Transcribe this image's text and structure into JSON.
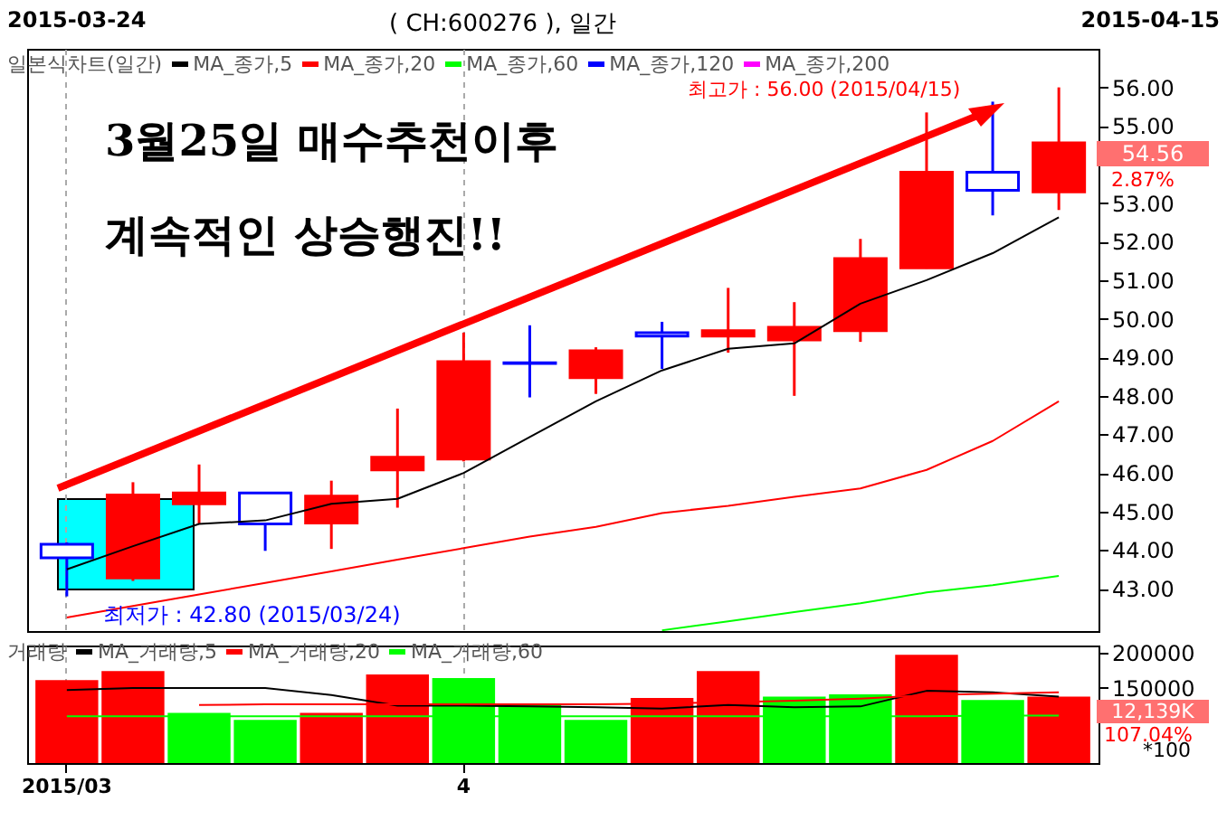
{
  "chart_data": [
    {
      "type": "candlestick",
      "title": "( CH:600276 ), 일간",
      "legend_title": "일본식차트(일간)",
      "legend": "top left",
      "tick_labels": "y",
      "grid": "x",
      "categories": [
        "2015/03",
        null,
        null,
        null,
        null,
        null,
        "4",
        null,
        null,
        null,
        null,
        null,
        null,
        null,
        null,
        null
      ],
      "ohlc": [
        [
          44.15,
          44.2,
          42.8,
          43.8
        ],
        [
          43.28,
          45.76,
          43.2,
          45.43
        ],
        [
          45.2,
          46.22,
          44.68,
          45.48
        ],
        [
          45.48,
          45.48,
          43.98,
          44.68
        ],
        [
          44.7,
          45.8,
          44.03,
          45.4
        ],
        [
          46.08,
          47.67,
          45.1,
          46.41
        ],
        [
          46.36,
          49.64,
          46.3,
          48.89
        ],
        [
          48.86,
          49.83,
          47.96,
          48.84
        ],
        [
          48.47,
          49.26,
          48.05,
          49.17
        ],
        [
          49.64,
          49.92,
          48.7,
          49.55
        ],
        [
          49.55,
          50.8,
          49.12,
          49.69
        ],
        [
          49.45,
          50.43,
          48.0,
          49.78
        ],
        [
          49.69,
          52.07,
          49.4,
          51.56
        ],
        [
          51.32,
          55.35,
          51.3,
          53.8
        ],
        [
          53.8,
          55.63,
          52.68,
          53.33
        ],
        [
          53.29,
          56.0,
          52.82,
          54.56
        ]
      ],
      "colors": [
        "#0000ff",
        "#ff0000",
        "#ff0000",
        "#0000ff",
        "#ff0000",
        "#ff0000",
        "#ff0000",
        "#0000ff",
        "#ff0000",
        "#0000ff",
        "#ff0000",
        "#ff0000",
        "#ff0000",
        "#ff0000",
        "#0000ff",
        "#ff0000"
      ],
      "series": [
        {
          "name": "MA_종가,5",
          "type": "line",
          "color": "#000000",
          "values": [
            43.5,
            44.1,
            44.68,
            44.77,
            45.2,
            45.33,
            46.0,
            46.93,
            47.86,
            48.66,
            49.22,
            49.36,
            50.39,
            51.0,
            51.7,
            52.63
          ]
        },
        {
          "name": "MA_종가,20",
          "type": "line",
          "color": "#ff0000",
          "values": [
            42.25,
            42.55,
            42.85,
            43.15,
            43.45,
            43.75,
            44.05,
            44.35,
            44.6,
            44.96,
            45.15,
            45.38,
            45.6,
            46.08,
            46.83,
            47.86
          ]
        },
        {
          "name": "MA_종가,60",
          "type": "line",
          "color": "#00ff00",
          "values": [
            null,
            null,
            null,
            null,
            null,
            null,
            null,
            null,
            null,
            41.92,
            42.15,
            42.39,
            42.62,
            42.9,
            43.09,
            43.33
          ]
        },
        {
          "name": "MA_종가,120",
          "type": "line",
          "color": "#0000ff",
          "values": [
            null,
            null,
            null,
            null,
            null,
            null,
            null,
            null,
            null,
            null,
            null,
            null,
            null,
            null,
            null,
            null
          ]
        },
        {
          "name": "MA_종가,200",
          "type": "line",
          "color": "#ff00ff",
          "values": [
            null,
            null,
            null,
            null,
            null,
            null,
            null,
            null,
            null,
            null,
            null,
            null,
            null,
            null,
            null,
            null
          ]
        }
      ],
      "ylim": [
        41.9,
        57.0
      ],
      "yticks": [
        {
          "value": 43,
          "label": "43.00"
        },
        {
          "value": 44,
          "label": "44.00"
        },
        {
          "value": 45,
          "label": "45.00"
        },
        {
          "value": 46,
          "label": "46.00"
        },
        {
          "value": 47,
          "label": "47.00"
        },
        {
          "value": 48,
          "label": "48.00"
        },
        {
          "value": 49,
          "label": "49.00"
        },
        {
          "value": 50,
          "label": "50.00"
        },
        {
          "value": 51,
          "label": "51.00"
        },
        {
          "value": 52,
          "label": "52.00"
        },
        {
          "value": 53,
          "label": "53.00"
        },
        {
          "value": 55,
          "label": "55.00"
        },
        {
          "value": 56,
          "label": "56.00"
        }
      ],
      "annotations": [
        "2015-03-24",
        "2015-04-15",
        "3월25일  매수추천이후",
        "계속적인  상승행진!!",
        "54.56",
        "2.87%",
        {
          "text": "최저가 : 42.80 (2015/03/24)",
          "x": "2015/03",
          "y": 42.8
        },
        "최고가 : 56.00 (2015/04/15)"
      ]
    },
    {
      "type": "bar",
      "legend_title": "거래량",
      "legend": "top left",
      "grid": "x",
      "categories": [
        "2015/03",
        null,
        null,
        null,
        null,
        null,
        "4",
        null,
        null,
        null,
        null,
        null,
        null,
        null,
        null,
        null
      ],
      "series": [
        {
          "colors": [
            "#ff0000",
            "#ff0000",
            "#00ff00",
            "#00ff00",
            "#ff0000",
            "#ff0000",
            "#00ff00",
            "#00ff00",
            "#00ff00",
            "#ff0000",
            "#ff0000",
            "#00ff00",
            "#00ff00",
            "#ff0000",
            "#00ff00",
            "#ff0000"
          ],
          "values": [
            161000,
            174000,
            115000,
            105000,
            115000,
            169000,
            164000,
            128000,
            105000,
            136000,
            174000,
            138000,
            141000,
            197000,
            133000,
            138000
          ]
        },
        {
          "name": "MA_거래량,5",
          "type": "line",
          "color": "#000000",
          "values": [
            147000,
            150000,
            150000,
            150000,
            140000,
            125000,
            125000,
            124000,
            123000,
            121000,
            126000,
            123000,
            124000,
            146000,
            144000,
            138000
          ]
        },
        {
          "name": "MA_거래량,20",
          "type": "line",
          "color": "#ff0000",
          "values": [
            null,
            null,
            126000,
            127000,
            127000,
            127000,
            127000,
            127000,
            127000,
            128000,
            130000,
            132000,
            135000,
            140000,
            142000,
            144000
          ]
        },
        {
          "name": "MA_거래량,60",
          "type": "line",
          "color": "#00ff00",
          "values": [
            110000,
            110000,
            110000,
            110000,
            110000,
            110000,
            110000,
            110000,
            110000,
            110000,
            110000,
            110000,
            110000,
            110000,
            111000,
            111000
          ]
        }
      ],
      "ylim": [
        44000,
        210000
      ],
      "yticks": [
        150000,
        200000
      ],
      "ylabel": "*100",
      "annotations": [
        "12,139K",
        "107.04%"
      ]
    }
  ]
}
